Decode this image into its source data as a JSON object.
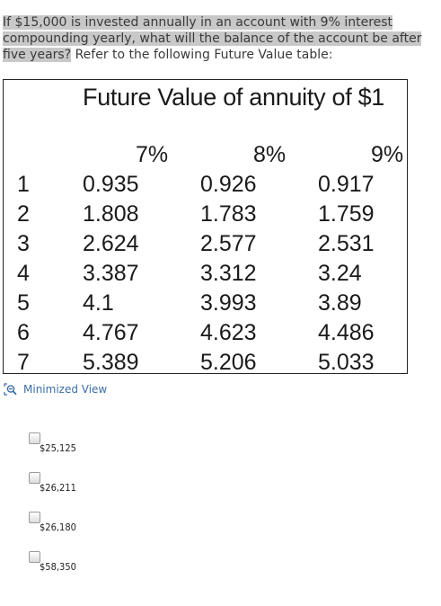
{
  "question": {
    "highlighted": "If $15,000 is invested annually in an account with 9% interest compounding yearly, what will the balance of the account be after five years?",
    "rest": " Refer to the following Future Value table:"
  },
  "table": {
    "title": "Future Value of annuity of $1",
    "rates": [
      "7%",
      "8%",
      "9%"
    ],
    "rows": [
      {
        "year": "1",
        "v7": "0.935",
        "v8": "0.926",
        "v9": "0.917"
      },
      {
        "year": "2",
        "v7": "1.808",
        "v8": "1.783",
        "v9": "1.759"
      },
      {
        "year": "3",
        "v7": "2.624",
        "v8": "2.577",
        "v9": "2.531"
      },
      {
        "year": "4",
        "v7": "3.387",
        "v8": "3.312",
        "v9": "3.24"
      },
      {
        "year": "5",
        "v7": "4.1",
        "v8": "3.993",
        "v9": "3.89"
      },
      {
        "year": "6",
        "v7": "4.767",
        "v8": "4.623",
        "v9": "4.486"
      },
      {
        "year": "7",
        "v7": "5.389",
        "v8": "5.206",
        "v9": "5.033"
      }
    ]
  },
  "minimized_view": {
    "label": "Minimized View",
    "icon": "zoom-out-icon"
  },
  "options": [
    {
      "label": "$25,125",
      "checked": false
    },
    {
      "label": "$26,211",
      "checked": false
    },
    {
      "label": "$26,180",
      "checked": false
    },
    {
      "label": "$58,350",
      "checked": false
    }
  ],
  "colors": {
    "highlight": "#c8c8c8",
    "link": "#3b6ea5"
  }
}
